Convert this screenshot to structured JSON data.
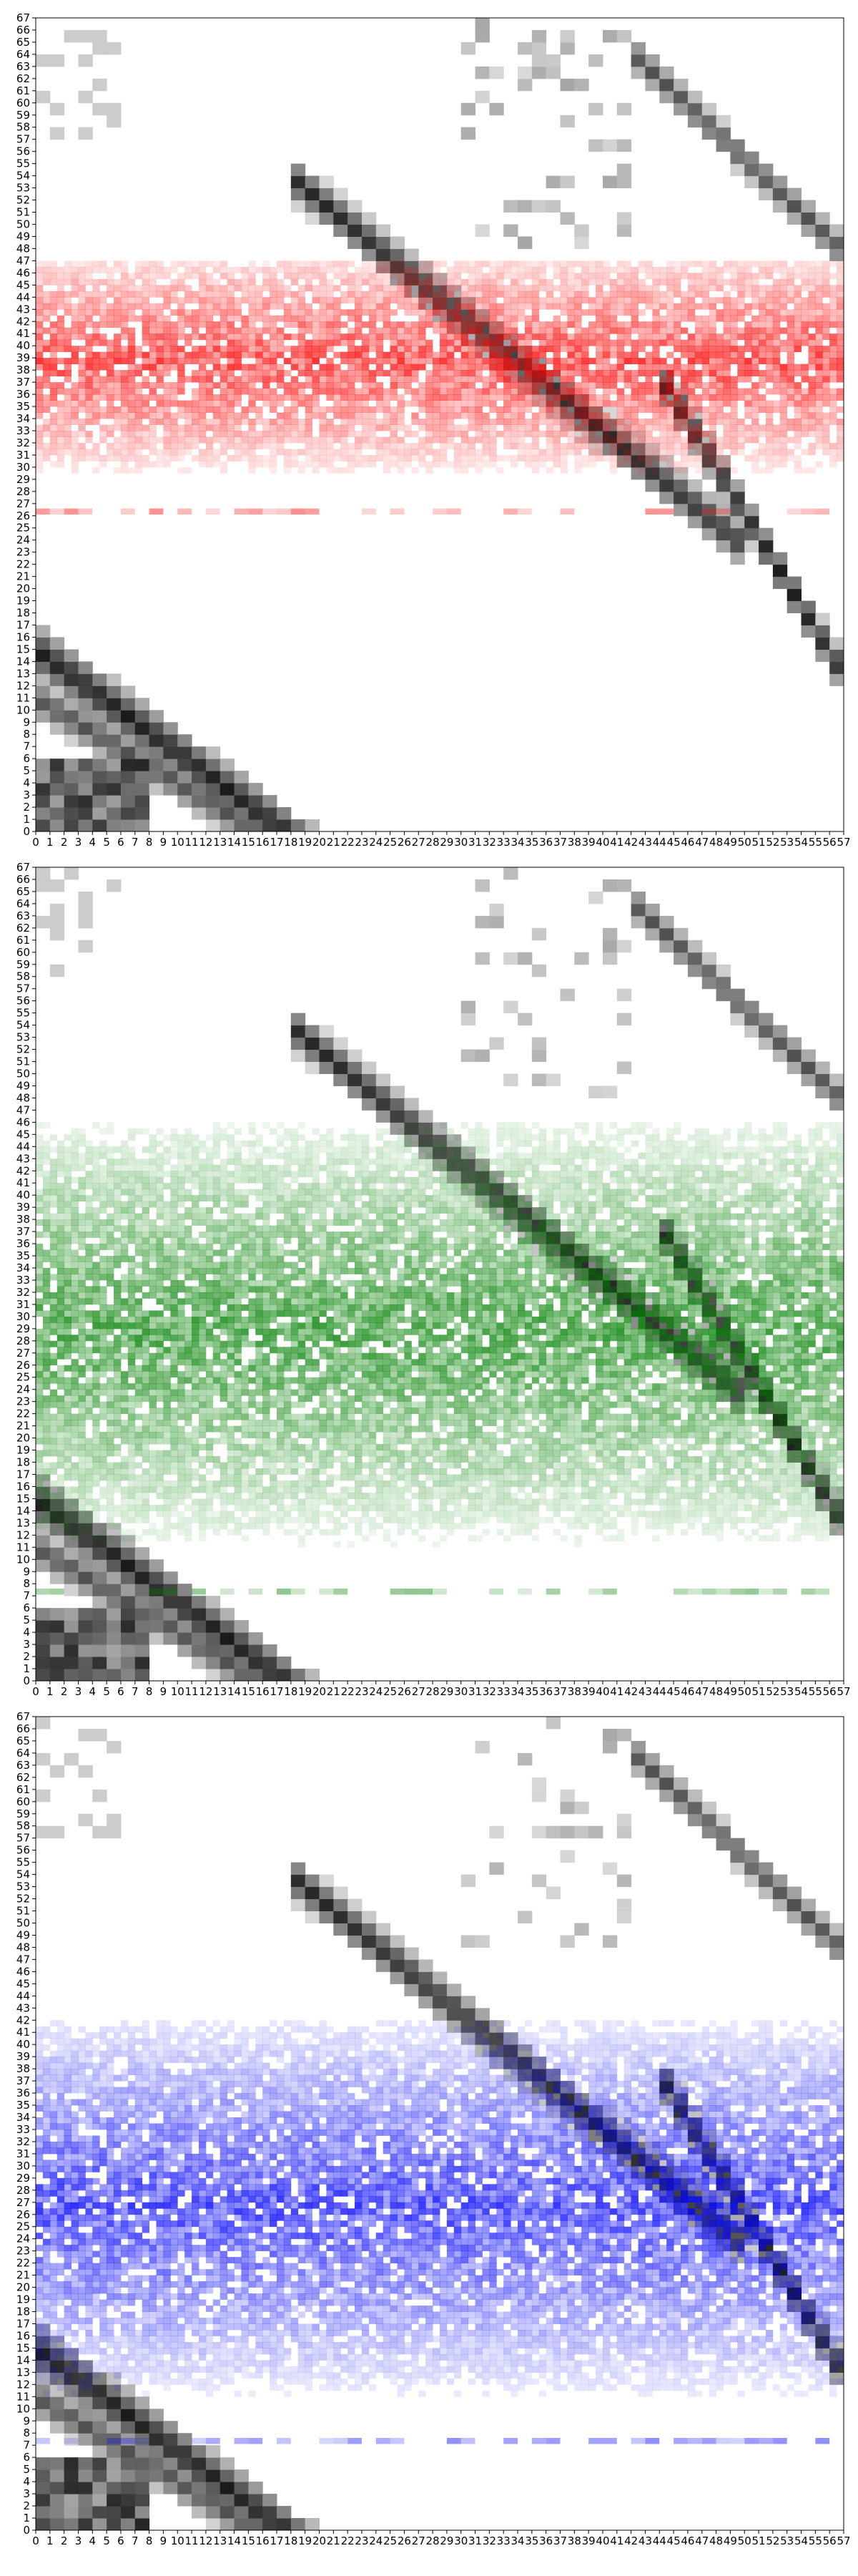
{
  "chart_data": [
    {
      "type": "heatmap",
      "title": "",
      "xlabel": "",
      "ylabel": "",
      "grid": false,
      "legend": "none",
      "xlim": [
        0,
        67
      ],
      "ylim": [
        0,
        67
      ],
      "x_ticks": [
        0,
        1,
        2,
        3,
        4,
        5,
        6,
        7,
        8,
        9,
        10,
        11,
        12,
        13,
        14,
        15,
        16,
        17,
        18,
        19,
        20,
        21,
        22,
        23,
        24,
        25,
        26,
        27,
        28,
        29,
        30,
        31,
        32,
        33,
        34,
        35,
        36,
        37,
        38,
        39,
        40,
        41,
        42,
        43,
        44,
        45,
        46,
        47,
        48,
        49,
        50,
        51,
        52,
        53,
        54,
        55,
        56,
        57
      ],
      "y_ticks": [
        0,
        1,
        2,
        3,
        4,
        5,
        6,
        7,
        8,
        9,
        10,
        11,
        12,
        13,
        14,
        15,
        16,
        17,
        18,
        19,
        20,
        21,
        22,
        23,
        24,
        25,
        26,
        27,
        28,
        29,
        30,
        31,
        32,
        33,
        34,
        35,
        36,
        37,
        38,
        39,
        40,
        41,
        42,
        43,
        44,
        45,
        46,
        47,
        48,
        49,
        50,
        51,
        52,
        53,
        54,
        55,
        56,
        57,
        58,
        59,
        60,
        61,
        62,
        63,
        64,
        65,
        66,
        67
      ],
      "layers": [
        {
          "colormap": "gray-black",
          "content": "base occupancy grid"
        },
        {
          "colormap": "red",
          "band": [
            26,
            47
          ],
          "color": "#ff0000"
        }
      ],
      "grid_x_cells": 57,
      "grid_y_cells": 67
    },
    {
      "type": "heatmap",
      "title": "",
      "xlabel": "",
      "ylabel": "",
      "grid": false,
      "legend": "none",
      "xlim": [
        0,
        67
      ],
      "ylim": [
        0,
        67
      ],
      "x_ticks": [
        0,
        1,
        2,
        3,
        4,
        5,
        6,
        7,
        8,
        9,
        10,
        11,
        12,
        13,
        14,
        15,
        16,
        17,
        18,
        19,
        20,
        21,
        22,
        23,
        24,
        25,
        26,
        27,
        28,
        29,
        30,
        31,
        32,
        33,
        34,
        35,
        36,
        37,
        38,
        39,
        40,
        41,
        42,
        43,
        44,
        45,
        46,
        47,
        48,
        49,
        50,
        51,
        52,
        53,
        54,
        55,
        56,
        57
      ],
      "y_ticks": [
        0,
        1,
        2,
        3,
        4,
        5,
        6,
        7,
        8,
        9,
        10,
        11,
        12,
        13,
        14,
        15,
        16,
        17,
        18,
        19,
        20,
        21,
        22,
        23,
        24,
        25,
        26,
        27,
        28,
        29,
        30,
        31,
        32,
        33,
        34,
        35,
        36,
        37,
        38,
        39,
        40,
        41,
        42,
        43,
        44,
        45,
        46,
        47,
        48,
        49,
        50,
        51,
        52,
        53,
        54,
        55,
        56,
        57,
        58,
        59,
        60,
        61,
        62,
        63,
        64,
        65,
        66,
        67
      ],
      "layers": [
        {
          "colormap": "gray-black",
          "content": "base occupancy grid"
        },
        {
          "colormap": "green",
          "band": [
            7,
            46
          ],
          "color": "#008000"
        }
      ],
      "grid_x_cells": 57,
      "grid_y_cells": 67
    },
    {
      "type": "heatmap",
      "title": "",
      "xlabel": "",
      "ylabel": "",
      "grid": false,
      "legend": "none",
      "xlim": [
        0,
        67
      ],
      "ylim": [
        0,
        67
      ],
      "x_ticks": [
        0,
        1,
        2,
        3,
        4,
        5,
        6,
        7,
        8,
        9,
        10,
        11,
        12,
        13,
        14,
        15,
        16,
        17,
        18,
        19,
        20,
        21,
        22,
        23,
        24,
        25,
        26,
        27,
        28,
        29,
        30,
        31,
        32,
        33,
        34,
        35,
        36,
        37,
        38,
        39,
        40,
        41,
        42,
        43,
        44,
        45,
        46,
        47,
        48,
        49,
        50,
        51,
        52,
        53,
        54,
        55,
        56,
        57
      ],
      "y_ticks": [
        0,
        1,
        2,
        3,
        4,
        5,
        6,
        7,
        8,
        9,
        10,
        11,
        12,
        13,
        14,
        15,
        16,
        17,
        18,
        19,
        20,
        21,
        22,
        23,
        24,
        25,
        26,
        27,
        28,
        29,
        30,
        31,
        32,
        33,
        34,
        35,
        36,
        37,
        38,
        39,
        40,
        41,
        42,
        43,
        44,
        45,
        46,
        47,
        48,
        49,
        50,
        51,
        52,
        53,
        54,
        55,
        56,
        57,
        58,
        59,
        60,
        61,
        62,
        63,
        64,
        65,
        66,
        67
      ],
      "layers": [
        {
          "colormap": "gray-black",
          "content": "base occupancy grid"
        },
        {
          "colormap": "blue",
          "band": [
            7,
            42
          ],
          "color": "#0000ff"
        }
      ],
      "grid_x_cells": 57,
      "grid_y_cells": 67
    }
  ]
}
